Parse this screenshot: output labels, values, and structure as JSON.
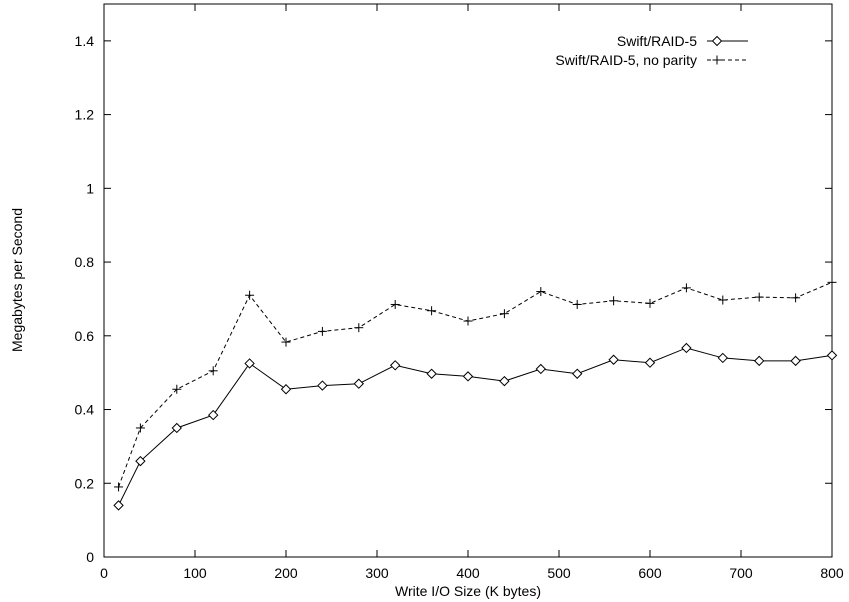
{
  "chart_data": {
    "type": "line",
    "title": "",
    "xlabel": "Write I/O Size (K bytes)",
    "ylabel": "Megabytes per Second",
    "xlim": [
      0,
      800
    ],
    "ylim": [
      0,
      1.5
    ],
    "xticks": [
      0,
      100,
      200,
      300,
      400,
      500,
      600,
      700,
      800
    ],
    "xtick_labels": [
      "0",
      "100",
      "200",
      "300",
      "400",
      "500",
      "600",
      "700",
      "800"
    ],
    "yticks": [
      0,
      0.2,
      0.4,
      0.6,
      0.8,
      1.0,
      1.2,
      1.4
    ],
    "ytick_labels": [
      "0",
      "0.2",
      "0.4",
      "0.6",
      "0.8",
      "1",
      "1.2",
      "1.4"
    ],
    "grid": false,
    "legend_position": "top-right",
    "x": [
      16,
      40,
      80,
      120,
      160,
      200,
      240,
      280,
      320,
      360,
      400,
      440,
      480,
      520,
      560,
      600,
      640,
      680,
      720,
      760,
      800
    ],
    "series": [
      {
        "name": "Swift/RAID-5",
        "line_style": "solid",
        "marker": "diamond",
        "color": "#000000",
        "values": [
          0.14,
          0.26,
          0.35,
          0.385,
          0.525,
          0.455,
          0.465,
          0.47,
          0.52,
          0.497,
          0.49,
          0.477,
          0.51,
          0.497,
          0.535,
          0.527,
          0.567,
          0.54,
          0.532,
          0.532,
          0.547
        ]
      },
      {
        "name": "Swift/RAID-5, no parity",
        "line_style": "dashed",
        "marker": "plus",
        "color": "#000000",
        "values": [
          0.19,
          0.35,
          0.455,
          0.505,
          0.71,
          0.583,
          0.612,
          0.622,
          0.685,
          0.668,
          0.64,
          0.66,
          0.72,
          0.685,
          0.695,
          0.688,
          0.73,
          0.697,
          0.705,
          0.703,
          0.745
        ]
      }
    ]
  }
}
